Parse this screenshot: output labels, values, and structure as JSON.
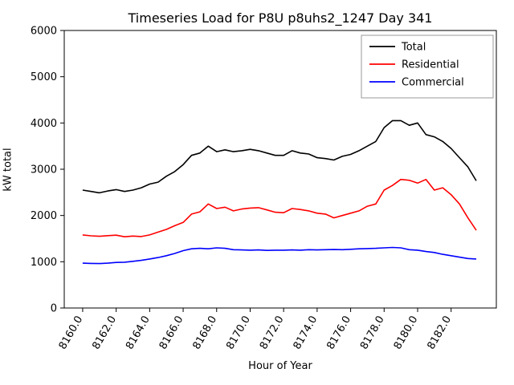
{
  "figure": {
    "title": "Timeseries Load for P8U p8uhs2_1247  Day 341",
    "xlabel": "Hour of Year",
    "ylabel": "kW total"
  },
  "chart_data": {
    "type": "line",
    "title": "Timeseries Load for P8U p8uhs2_1247  Day 341",
    "xlabel": "Hour of Year",
    "ylabel": "kW total",
    "grid": false,
    "legend_position": "upper right",
    "xlim": [
      8158.9,
      8184.7
    ],
    "ylim": [
      0,
      6000
    ],
    "yticks": [
      0,
      1000,
      2000,
      3000,
      4000,
      5000,
      6000
    ],
    "xticks": [
      8160,
      8162,
      8164,
      8166,
      8168,
      8170,
      8172,
      8174,
      8176,
      8178,
      8180,
      8182
    ],
    "x": [
      8160.0,
      8160.5,
      8161.0,
      8161.5,
      8162.0,
      8162.5,
      8163.0,
      8163.5,
      8164.0,
      8164.5,
      8165.0,
      8165.5,
      8166.0,
      8166.5,
      8167.0,
      8167.5,
      8168.0,
      8168.5,
      8169.0,
      8169.5,
      8170.0,
      8170.5,
      8171.0,
      8171.5,
      8172.0,
      8172.5,
      8173.0,
      8173.5,
      8174.0,
      8174.5,
      8175.0,
      8175.5,
      8176.0,
      8176.5,
      8177.0,
      8177.5,
      8178.0,
      8178.5,
      8179.0,
      8179.5,
      8180.0,
      8180.5,
      8181.0,
      8181.5,
      8182.0,
      8182.5,
      8183.0,
      8183.5
    ],
    "series": [
      {
        "name": "Total",
        "color": "#000000",
        "values": [
          2550,
          2520,
          2490,
          2530,
          2560,
          2520,
          2550,
          2600,
          2680,
          2720,
          2850,
          2950,
          3100,
          3300,
          3350,
          3500,
          3380,
          3420,
          3380,
          3400,
          3430,
          3400,
          3350,
          3300,
          3300,
          3400,
          3350,
          3330,
          3250,
          3230,
          3200,
          3280,
          3320,
          3400,
          3500,
          3600,
          3900,
          4050,
          4050,
          3950,
          4000,
          3750,
          3700,
          3600,
          3450,
          3250,
          3050,
          2750
        ]
      },
      {
        "name": "Residential",
        "color": "#ff0000",
        "values": [
          1580,
          1560,
          1550,
          1565,
          1575,
          1540,
          1555,
          1545,
          1580,
          1640,
          1700,
          1780,
          1850,
          2030,
          2080,
          2250,
          2150,
          2180,
          2100,
          2140,
          2160,
          2170,
          2120,
          2070,
          2060,
          2150,
          2130,
          2100,
          2050,
          2030,
          1950,
          2000,
          2050,
          2100,
          2200,
          2250,
          2550,
          2650,
          2780,
          2760,
          2700,
          2780,
          2550,
          2600,
          2450,
          2250,
          1950,
          1680
        ]
      },
      {
        "name": "Commercial",
        "color": "#0000ff",
        "values": [
          970,
          965,
          960,
          970,
          985,
          990,
          1010,
          1030,
          1060,
          1090,
          1130,
          1180,
          1240,
          1280,
          1290,
          1280,
          1300,
          1290,
          1260,
          1255,
          1250,
          1255,
          1245,
          1250,
          1250,
          1255,
          1250,
          1260,
          1255,
          1260,
          1265,
          1260,
          1270,
          1280,
          1285,
          1290,
          1300,
          1310,
          1300,
          1260,
          1250,
          1220,
          1200,
          1160,
          1130,
          1100,
          1070,
          1060
        ]
      }
    ]
  }
}
